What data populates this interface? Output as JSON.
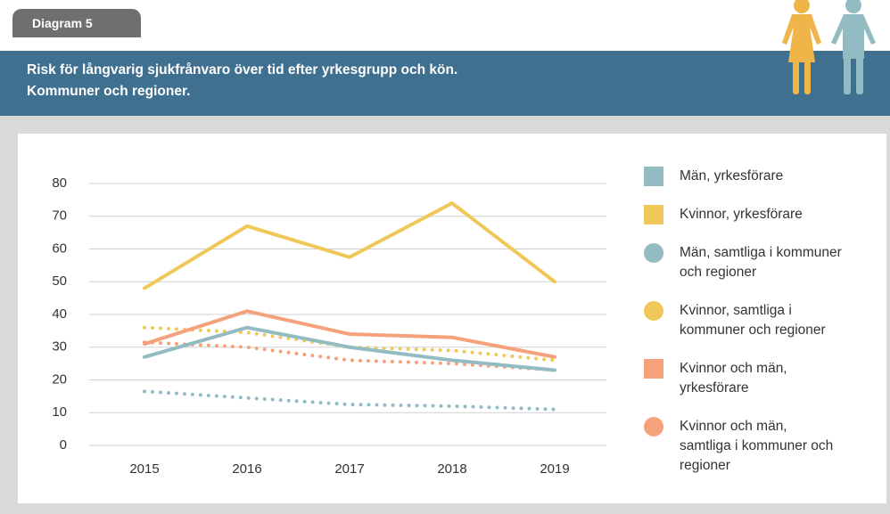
{
  "tab": "Diagram 5",
  "header": {
    "title": "Risk för långvarig sjukfrånvaro över tid efter yrkesgrupp och kön.",
    "subtitle": "Kommuner och regioner."
  },
  "chart_data": {
    "type": "line",
    "categories": [
      "2015",
      "2016",
      "2017",
      "2018",
      "2019"
    ],
    "ylim": [
      0,
      80
    ],
    "yticks": [
      0,
      10,
      20,
      30,
      40,
      50,
      60,
      70,
      80
    ],
    "grid": true,
    "legend": "right",
    "series": [
      {
        "name": "Män, yrkesförare",
        "color": "#93bcc2",
        "style": "solid",
        "values": [
          27,
          36,
          30,
          26,
          23
        ]
      },
      {
        "name": "Kvinnor, yrkesförare",
        "color": "#f0c85a",
        "style": "solid",
        "values": [
          48,
          67,
          57.5,
          74,
          50
        ]
      },
      {
        "name": "Män, samtliga i kommuner och regioner",
        "color": "#93bcc2",
        "style": "dotted",
        "values": [
          16.5,
          14.5,
          12.5,
          12,
          11
        ]
      },
      {
        "name": "Kvinnor, samtliga i kommuner och regioner",
        "color": "#f0c85a",
        "style": "dotted",
        "values": [
          36,
          34.5,
          30,
          29,
          26
        ]
      },
      {
        "name": "Kvinnor och män, yrkesförare",
        "color": "#f5a27c",
        "style": "solid",
        "values": [
          31,
          41,
          34,
          33,
          27
        ]
      },
      {
        "name": "Kvinnor och män, samtliga i kommuner och regioner",
        "color": "#f5a27c",
        "style": "dotted",
        "values": [
          31.5,
          30,
          26,
          25,
          23
        ]
      }
    ]
  }
}
